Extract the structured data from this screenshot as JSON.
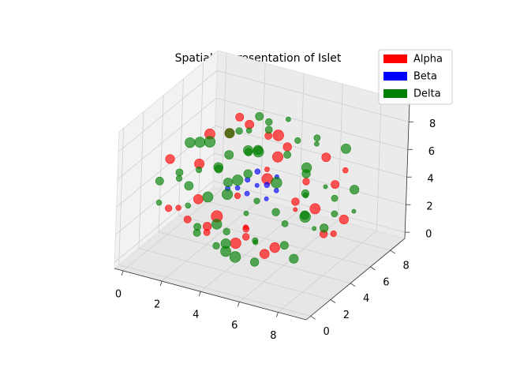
{
  "chart_data": {
    "type": "scatter3d",
    "title": "Spatial Representation of Islet",
    "xlim": [
      -0.45,
      9.45
    ],
    "ylim": [
      -0.45,
      9.45
    ],
    "zlim": [
      -0.45,
      9.45
    ],
    "xticks": [
      0,
      2,
      4,
      6,
      8
    ],
    "yticks": [
      0,
      2,
      4,
      6,
      8
    ],
    "zticks": [
      0,
      2,
      4,
      6,
      8
    ],
    "grid": true,
    "legend": "upper right",
    "series": [
      {
        "name": "Alpha",
        "color": "#ff0000",
        "x": [
          0,
          1,
          1,
          2,
          2,
          2,
          3,
          3,
          3,
          4,
          4,
          4,
          5,
          5,
          5,
          6,
          6,
          6,
          7,
          7,
          7,
          8,
          8,
          9,
          1,
          2,
          3,
          4,
          5,
          6,
          7,
          8,
          3,
          6,
          4,
          5
        ],
        "y": [
          4,
          2,
          6,
          1,
          5,
          7,
          2,
          4,
          8,
          0,
          3,
          6,
          1,
          4,
          7,
          2,
          5,
          8,
          1,
          4,
          7,
          3,
          5,
          4,
          4,
          3,
          6,
          8,
          2,
          3,
          6,
          6,
          1,
          0,
          4,
          5
        ],
        "z": [
          5,
          3,
          6,
          4,
          1,
          7,
          2,
          8,
          3,
          4,
          1,
          7,
          6,
          0,
          2,
          7,
          3,
          5,
          3,
          6,
          4,
          5,
          2,
          4,
          1,
          6,
          0,
          5,
          3,
          8,
          1,
          6,
          5,
          4,
          9,
          8
        ],
        "sizes": [
          70,
          40,
          90,
          25,
          110,
          55,
          35,
          80,
          20,
          60,
          95,
          45,
          30,
          75,
          50,
          100,
          15,
          65,
          85,
          40,
          55,
          90,
          30,
          70,
          45,
          80,
          20,
          60,
          35,
          95,
          50,
          25,
          75,
          40,
          65,
          100
        ]
      },
      {
        "name": "Beta",
        "color": "#0000ff",
        "x": [
          4,
          5,
          4,
          5,
          4,
          5,
          3,
          4,
          5,
          4
        ],
        "y": [
          4,
          4,
          5,
          5,
          4,
          5,
          4,
          3,
          4,
          5
        ],
        "z": [
          4,
          4,
          5,
          4,
          5,
          5,
          4,
          5,
          5,
          4
        ],
        "sizes": [
          20,
          15,
          25,
          18,
          22,
          15,
          20,
          18,
          25,
          15
        ]
      },
      {
        "name": "Delta",
        "color": "#008000",
        "x": [
          3,
          4,
          5,
          4,
          2,
          3,
          4,
          6,
          5,
          7,
          1,
          2,
          4,
          6,
          7,
          3,
          5,
          0,
          1,
          3,
          4,
          6,
          8,
          2,
          7,
          0,
          1,
          2,
          5,
          8,
          9,
          3,
          6,
          1,
          0,
          1,
          2,
          5,
          8,
          9,
          6,
          3,
          7,
          1,
          2,
          3,
          6,
          7,
          8,
          4,
          5,
          2,
          3,
          5,
          6,
          7,
          4,
          4,
          3,
          4,
          5,
          6,
          4,
          4,
          5
        ],
        "y": [
          4,
          5,
          3,
          3,
          3,
          6,
          2,
          4,
          6,
          3,
          4,
          6,
          1,
          6,
          5,
          3,
          8,
          5,
          7,
          1,
          7,
          1,
          4,
          4,
          7,
          3,
          1,
          8,
          0,
          7,
          5,
          5,
          3,
          5,
          6,
          3,
          2,
          9,
          2,
          3,
          6,
          7,
          4,
          5,
          7,
          3,
          1,
          8,
          4,
          2,
          6,
          4,
          6,
          2,
          7,
          4,
          4,
          8,
          4,
          6,
          3,
          5,
          2,
          5,
          4
        ],
        "z": [
          0,
          0,
          0,
          0,
          1,
          1,
          1,
          1,
          1,
          1,
          2,
          2,
          2,
          2,
          2,
          2,
          2,
          3,
          3,
          3,
          3,
          3,
          3,
          3,
          3,
          4,
          4,
          4,
          4,
          4,
          4,
          4,
          4,
          4,
          5,
          5,
          5,
          5,
          5,
          5,
          5,
          5,
          5,
          6,
          6,
          6,
          6,
          6,
          6,
          6,
          6,
          7,
          7,
          7,
          7,
          7,
          7,
          7,
          8,
          8,
          8,
          8,
          8,
          9,
          9
        ],
        "sizes": [
          80,
          30,
          60,
          100,
          45,
          20,
          90,
          55,
          35,
          70,
          25,
          95,
          40,
          65,
          15,
          85,
          50,
          30,
          75,
          45,
          100,
          20,
          60,
          90,
          35,
          55,
          25,
          80,
          40,
          70,
          15,
          95,
          50,
          30,
          85,
          45,
          65,
          20,
          100,
          35,
          60,
          75,
          25,
          90,
          40,
          55,
          30,
          80,
          15,
          70,
          45,
          100,
          25,
          60,
          35,
          85,
          50,
          20,
          75,
          40,
          95,
          30,
          65,
          55,
          45
        ]
      }
    ]
  }
}
